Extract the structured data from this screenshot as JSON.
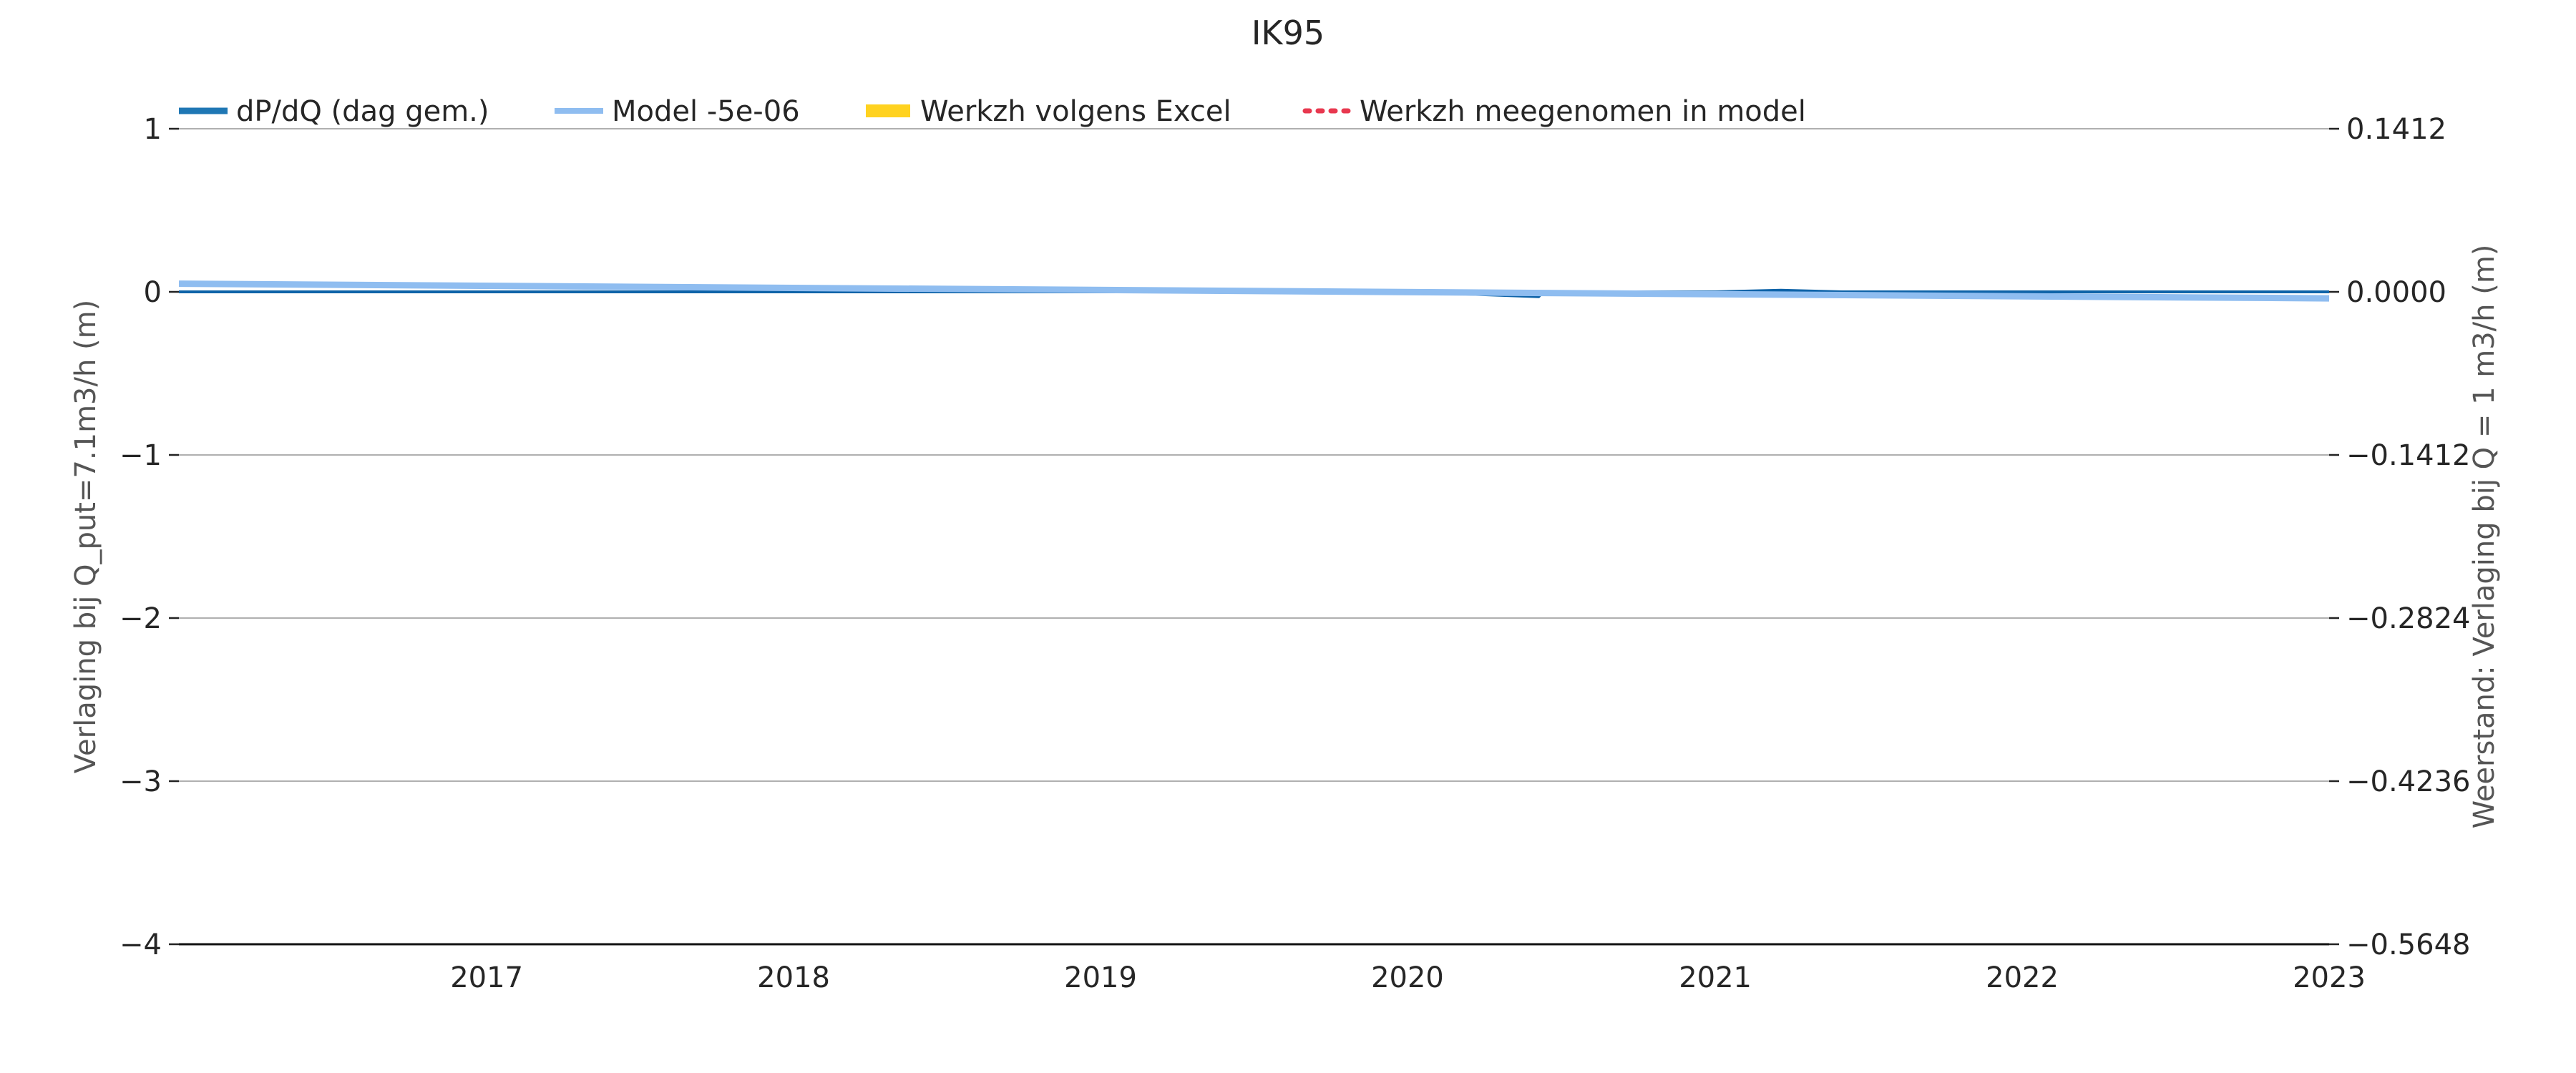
{
  "chart_data": {
    "type": "line",
    "title": "IK95",
    "ylabel": "Verlaging bij Q_put=7.1m3/h (m)",
    "ylabel_right": "Weerstand: Verlaging bij Q = 1 m3/h (m)",
    "xlabel": "",
    "ylim": [
      -4,
      1
    ],
    "y2lim": [
      -0.5648,
      0.1412
    ],
    "xlim": [
      "2016-01-01",
      "2023-01-01"
    ],
    "y_ticks": [
      "1",
      "0",
      "−1",
      "−2",
      "−3",
      "−4"
    ],
    "y2_ticks": [
      "0.1412",
      "0.0000",
      "−0.1412",
      "−0.2824",
      "−0.4236",
      "−0.5648"
    ],
    "x_ticks": [
      "2017",
      "2018",
      "2019",
      "2020",
      "2021",
      "2022",
      "2023"
    ],
    "grid": "horizontal",
    "legend_position": "top",
    "legend": [
      {
        "label": "dP/dQ (dag gem.)",
        "color": "#1f77b4",
        "style": "solid-thick"
      },
      {
        "label": "Model -5e-06",
        "color": "#8fbdf0",
        "style": "solid"
      },
      {
        "label": "Werkzh volgens Excel",
        "color": "#ffd21f",
        "style": "bar"
      },
      {
        "label": "Werkzh meegenomen in model",
        "color": "#e8384f",
        "style": "dotted"
      }
    ],
    "series": [
      {
        "name": "dP/dQ (dag gem.)",
        "color": "#0e63a8",
        "x": [
          "2016-01-01",
          "2017-01-01",
          "2018-01-01",
          "2019-01-01",
          "2020-01-01",
          "2020-06-05",
          "2020-06-10",
          "2021-01-01",
          "2021-03-20",
          "2021-06-01",
          "2022-01-01",
          "2023-01-01"
        ],
        "y": [
          0.0,
          0.0,
          0.0,
          0.0,
          0.0,
          -0.03,
          0.0,
          0.0,
          0.01,
          0.0,
          0.0,
          0.0
        ]
      },
      {
        "name": "Model -5e-06",
        "color": "#8fbdf0",
        "x": [
          "2016-01-01",
          "2023-01-01"
        ],
        "y": [
          0.05,
          -0.04
        ]
      }
    ]
  }
}
